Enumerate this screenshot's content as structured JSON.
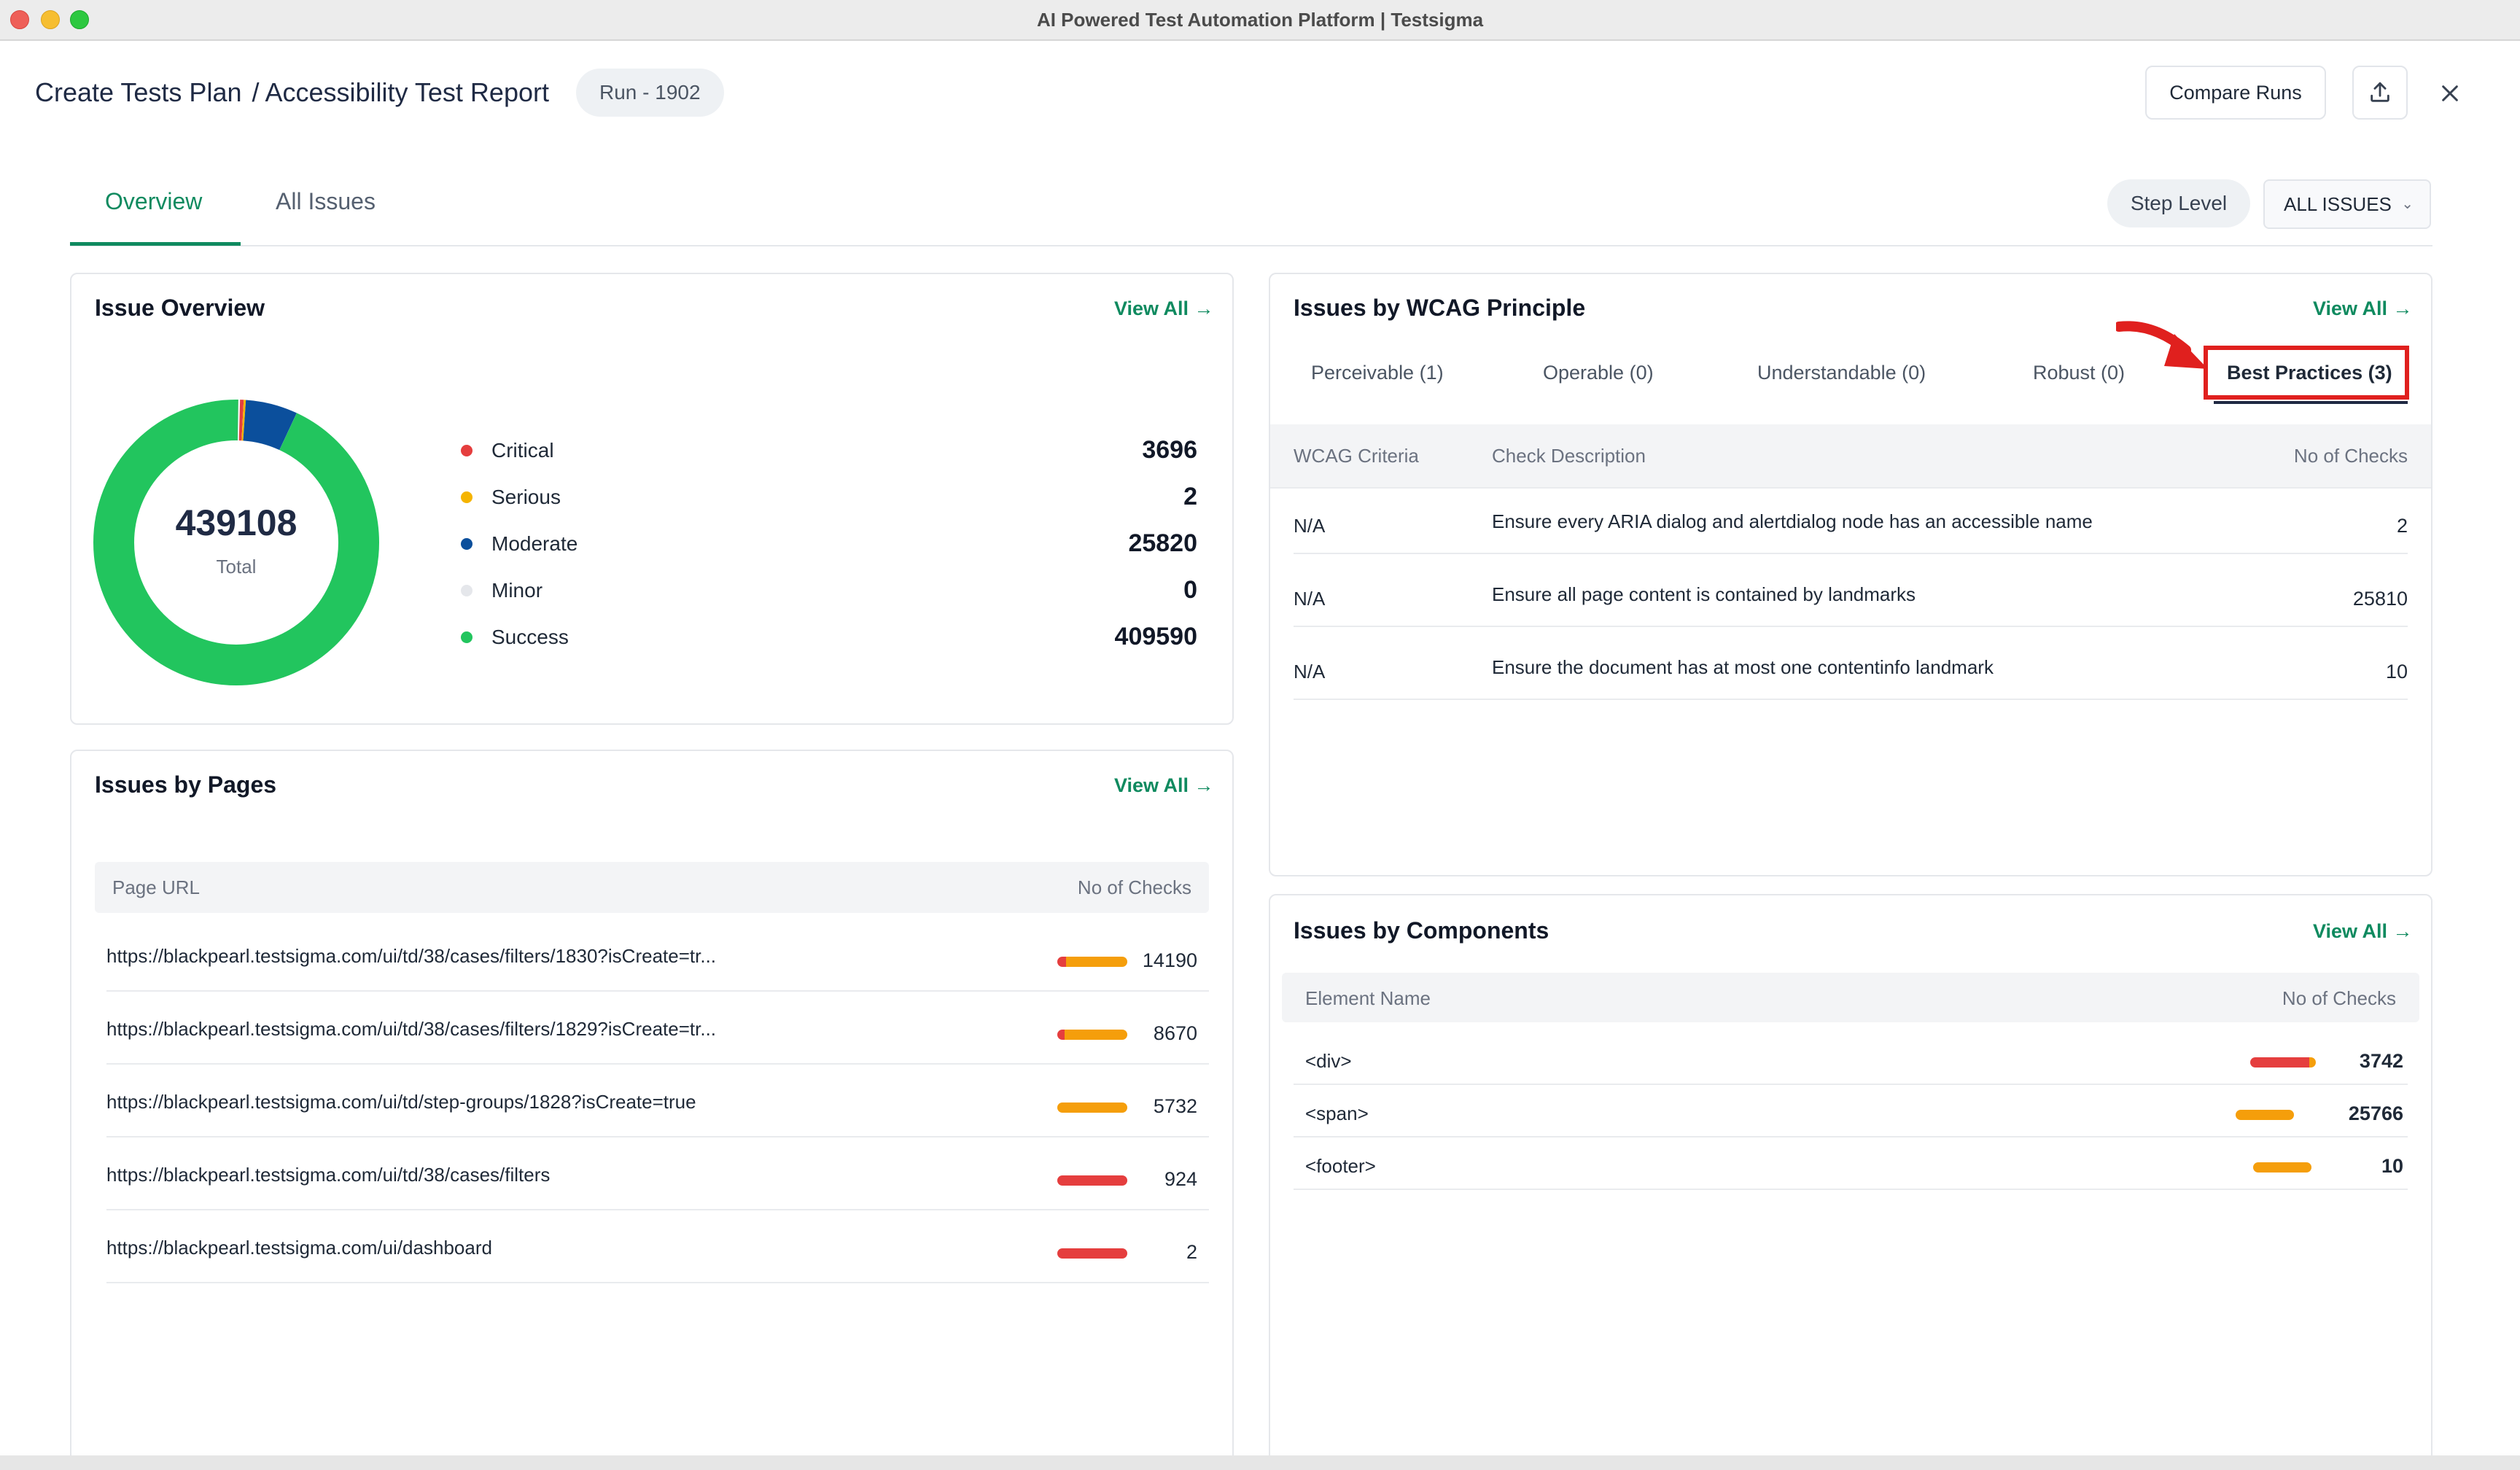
{
  "window": {
    "title": "AI Powered Test Automation Platform | Testsigma"
  },
  "header": {
    "breadcrumb_root": "Create Tests Plan",
    "breadcrumb_page": "/ Accessibility Test Report",
    "run_badge": "Run - 1902",
    "compare_runs_label": "Compare Runs",
    "export_icon": "upload-icon",
    "close_icon": "close-icon"
  },
  "tabs": [
    {
      "label": "Overview",
      "active": true
    },
    {
      "label": "All Issues",
      "active": false
    }
  ],
  "filters": {
    "step_level_label": "Step Level",
    "issues_select_value": "ALL ISSUES"
  },
  "issue_overview": {
    "title": "Issue Overview",
    "view_all": "View All →",
    "total": "439108",
    "total_label": "Total",
    "legend": [
      {
        "name": "Critical",
        "count": "3696",
        "value": 3696,
        "color": "#e53e3e"
      },
      {
        "name": "Serious",
        "count": "2",
        "value": 2,
        "color": "#f5b400"
      },
      {
        "name": "Moderate",
        "count": "25820",
        "value": 25820,
        "color": "#0b4f9c"
      },
      {
        "name": "Minor",
        "count": "0",
        "value": 0,
        "color": "#e5e7eb"
      },
      {
        "name": "Success",
        "count": "409590",
        "value": 409590,
        "color": "#22c55e"
      }
    ]
  },
  "issues_by_pages": {
    "title": "Issues by Pages",
    "view_all": "View All →",
    "columns": [
      "Page URL",
      "No of Checks"
    ],
    "rows": [
      {
        "url": "https://blackpearl.testsigma.com/ui/td/38/cases/filters/1830?isCreate=tr...",
        "checks": "14190",
        "critical_fraction": 0.12,
        "moderate_fraction": 0.88
      },
      {
        "url": "https://blackpearl.testsigma.com/ui/td/38/cases/filters/1829?isCreate=tr...",
        "checks": "8670",
        "critical_fraction": 0.1,
        "moderate_fraction": 0.9
      },
      {
        "url": "https://blackpearl.testsigma.com/ui/td/step-groups/1828?isCreate=true",
        "checks": "5732",
        "critical_fraction": 0,
        "moderate_fraction": 1
      },
      {
        "url": "https://blackpearl.testsigma.com/ui/td/38/cases/filters",
        "checks": "924",
        "critical_fraction": 1,
        "moderate_fraction": 0
      },
      {
        "url": "https://blackpearl.testsigma.com/ui/dashboard",
        "checks": "2",
        "critical_fraction": 1,
        "moderate_fraction": 0
      }
    ]
  },
  "wcag": {
    "title": "Issues by WCAG Principle",
    "view_all": "View All →",
    "tabs": [
      {
        "label": "Perceivable (1)",
        "active": false
      },
      {
        "label": "Operable (0)",
        "active": false
      },
      {
        "label": "Understandable (0)",
        "active": false
      },
      {
        "label": "Robust (0)",
        "active": false
      },
      {
        "label": "Best Practices (3)",
        "active": true
      }
    ],
    "columns": [
      "WCAG Criteria",
      "Check Description",
      "No of Checks"
    ],
    "rows": [
      {
        "criteria": "N/A",
        "description": "Ensure every ARIA dialog and alertdialog node has an accessible name",
        "checks": "2"
      },
      {
        "criteria": "N/A",
        "description": "Ensure all page content is contained by landmarks",
        "checks": "25810"
      },
      {
        "criteria": "N/A",
        "description": "Ensure the document has at most one contentinfo landmark",
        "checks": "10"
      }
    ]
  },
  "components": {
    "title": "Issues by Components",
    "view_all": "View All →",
    "columns": [
      "Element Name",
      "No of Checks"
    ],
    "rows": [
      {
        "element": "<div>",
        "checks": "3742",
        "critical_fraction": 0.9,
        "moderate_fraction": 0.1
      },
      {
        "element": "<span>",
        "checks": "25766",
        "critical_fraction": 0,
        "moderate_fraction": 1
      },
      {
        "element": "<footer>",
        "checks": "10",
        "critical_fraction": 0,
        "moderate_fraction": 1
      }
    ]
  },
  "colors": {
    "accent": "#0f8a5f",
    "critical": "#e53e3e",
    "moderate": "#f59e0b",
    "highlight": "#e0201e"
  }
}
